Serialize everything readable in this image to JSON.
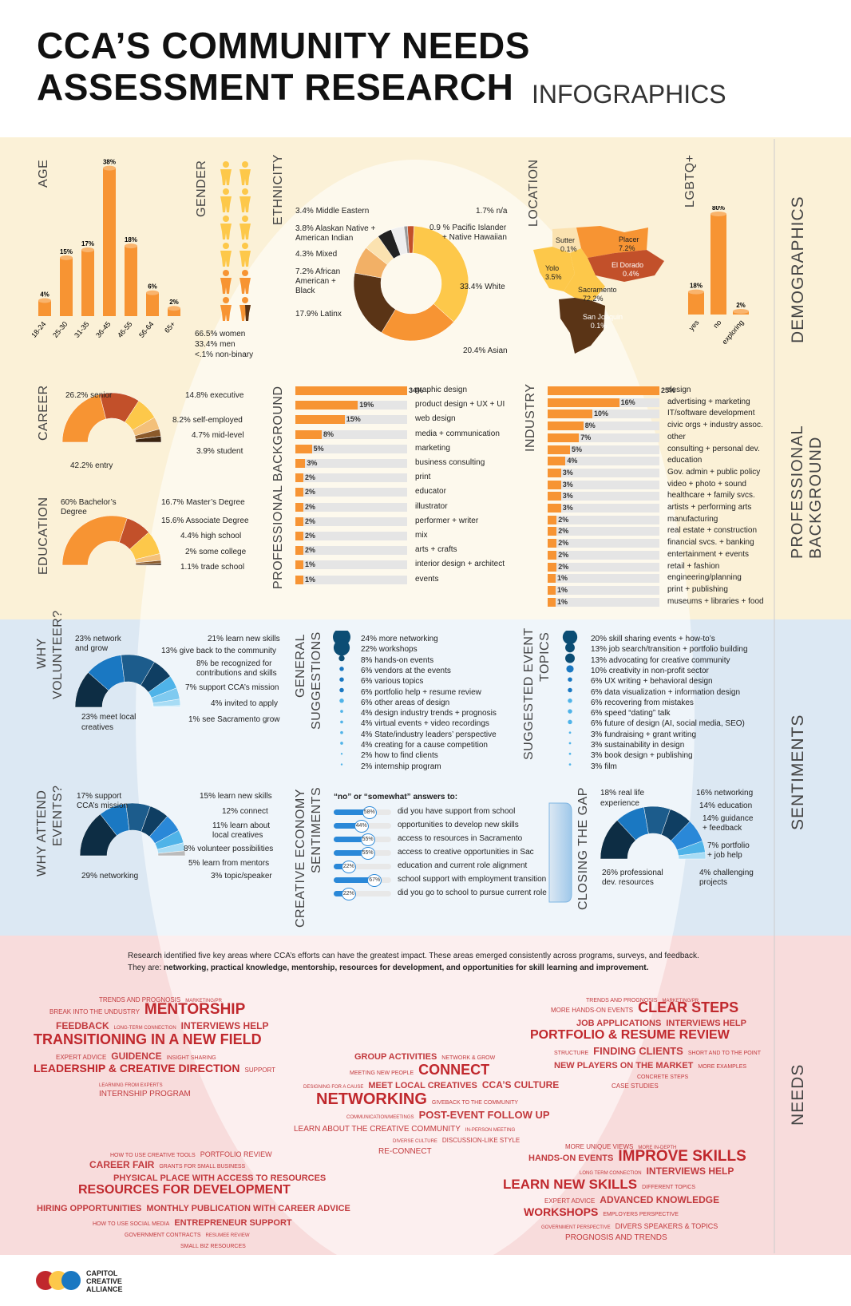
{
  "header": {
    "title_line1": "CCA’S COMMUNITY NEEDS",
    "title_line2": "ASSESSMENT RESEARCH",
    "subtitle": "INFOGRAPHICS"
  },
  "sections": {
    "demographics": "DEMOGRAPHICS",
    "professional_background": "PROFESSIONAL BACKGROUND",
    "sentiments": "SENTIMENTS",
    "needs": "NEEDS"
  },
  "colors": {
    "orange": "#f79433",
    "rust": "#c2502a",
    "yellow": "#fdc84a",
    "brown": "#5a3416",
    "navy": "#0d2d44",
    "blue": "#1a78c2",
    "lightblue": "#4fb3e8",
    "red": "#c0282d",
    "demo_bg": "#fbf1d7",
    "sent_bg": "#dce8f3",
    "needs_bg": "#f8dcdc"
  },
  "age": {
    "label": "AGE",
    "chart_data": {
      "type": "bar",
      "categories": [
        "18-24",
        "25-30",
        "31-35",
        "36-45",
        "46-55",
        "56-64",
        "65+"
      ],
      "values": [
        4,
        15,
        17,
        38,
        18,
        6,
        2
      ],
      "value_labels": [
        "4%",
        "15%",
        "17%",
        "38%",
        "18%",
        "6%",
        "2%"
      ]
    }
  },
  "gender": {
    "label": "GENDER",
    "lines": [
      "66.5% women",
      "33.4% men",
      "<.1%   non-binary"
    ]
  },
  "ethnicity": {
    "label": "ETHNICITY",
    "chart_data": {
      "type": "pie",
      "slices": [
        {
          "label": "33.4% White",
          "value": 33.4,
          "color": "#fdc84a"
        },
        {
          "label": "20.4% Asian",
          "value": 20.4,
          "color": "#f79433"
        },
        {
          "label": "17.9% Latinx",
          "value": 17.9,
          "color": "#5a3416"
        },
        {
          "label": "7.2% African American + Black",
          "value": 7.2,
          "color": "#f2b066"
        },
        {
          "label": "4.3% Mixed",
          "value": 4.3,
          "color": "#fbe2b0"
        },
        {
          "label": "3.8% Alaskan Native + American Indian",
          "value": 3.8,
          "color": "#222222"
        },
        {
          "label": "3.4% Middle Eastern",
          "value": 3.4,
          "color": "#eeeeee"
        },
        {
          "label": "1.7% n/a",
          "value": 1.7,
          "color": "#c2502a"
        },
        {
          "label": "0.9 % Pacific Islander + Native Hawaiian",
          "value": 0.9,
          "color": "#999999"
        }
      ]
    },
    "labels": {
      "middle_eastern": "3.4% Middle Eastern",
      "alaskan_1": "3.8% Alaskan Native +",
      "alaskan_2": "American Indian",
      "mixed": "4.3% Mixed",
      "african_1": "7.2% African",
      "african_2": "American +",
      "african_3": "Black",
      "latinx": "17.9% Latinx",
      "na": "1.7% n/a",
      "pacific_1": "0.9 % Pacific Islander",
      "pacific_2": "+ Native Hawaiian",
      "white": "33.4% White",
      "asian": "20.4% Asian"
    }
  },
  "location": {
    "label": "LOCATION",
    "counties": [
      {
        "name": "Sutter",
        "pct": "0.1%"
      },
      {
        "name": "Placer",
        "pct": "7.2%"
      },
      {
        "name": "Yolo",
        "pct": "3.5%"
      },
      {
        "name": "El Dorado",
        "pct": "0.4%"
      },
      {
        "name": "Sacramento",
        "pct": "72.2%"
      },
      {
        "name": "San Joaquin",
        "pct": "0.1%"
      }
    ]
  },
  "lgbtq": {
    "label": "LGBTQ+",
    "chart_data": {
      "type": "bar",
      "categories": [
        "yes",
        "no",
        "exploring"
      ],
      "values": [
        18,
        80,
        2
      ],
      "value_labels": [
        "18%",
        "80%",
        "2%"
      ]
    }
  },
  "career": {
    "label": "CAREER",
    "chart_data": {
      "type": "pie",
      "slices": [
        {
          "label": "42.2% entry",
          "value": 42.2
        },
        {
          "label": "26.2% senior",
          "value": 26.2
        },
        {
          "label": "14.8% executive",
          "value": 14.8
        },
        {
          "label": "8.2% self-employed",
          "value": 8.2
        },
        {
          "label": "4.7% mid-level",
          "value": 4.7
        },
        {
          "label": "3.9% student",
          "value": 3.9
        }
      ]
    },
    "labels": [
      "26.2% senior",
      "42.2% entry",
      "14.8% executive",
      "8.2% self-employed",
      "4.7% mid-level",
      "3.9% student"
    ]
  },
  "education": {
    "label": "EDUCATION",
    "chart_data": {
      "type": "pie",
      "slices": [
        {
          "label": "60% Bachelor’s Degree",
          "value": 60
        },
        {
          "label": "16.7% Master’s Degree",
          "value": 16.7
        },
        {
          "label": "15.6% Associate Degree",
          "value": 15.6
        },
        {
          "label": "4.4% high school",
          "value": 4.4
        },
        {
          "label": "2% some college",
          "value": 2
        },
        {
          "label": "1.1% trade school",
          "value": 1.1
        }
      ]
    },
    "labels": [
      "60% Bachelor’s",
      "Degree",
      "16.7% Master’s Degree",
      "15.6% Associate Degree",
      "4.4% high school",
      "2% some college",
      "1.1% trade school"
    ]
  },
  "professional": {
    "label": "PROFESSIONAL BACKGROUND",
    "chart_data": {
      "type": "bar",
      "orientation": "horizontal",
      "categories": [
        "graphic design",
        "product design + UX + UI",
        "web design",
        "media + communication",
        "marketing",
        "business consulting",
        "print",
        "educator",
        "illustrator",
        "performer + writer",
        "mix",
        "arts + crafts",
        "interior design + architect",
        "events"
      ],
      "values": [
        34,
        19,
        15,
        8,
        5,
        3,
        2,
        2,
        2,
        2,
        2,
        2,
        1,
        1
      ],
      "value_labels": [
        "34%",
        "19%",
        "15%",
        "8%",
        "5%",
        "3%",
        "2%",
        "2%",
        "2%",
        "2%",
        "2%",
        "2%",
        "1%",
        "1%"
      ]
    }
  },
  "industry": {
    "label": "INDUSTRY",
    "chart_data": {
      "type": "bar",
      "orientation": "horizontal",
      "categories": [
        "design",
        "advertising + marketing",
        "IT/software development",
        "civic orgs + industry assoc.",
        "other",
        "consulting + personal dev.",
        "education",
        "Gov. admin + public policy",
        "video + photo + sound",
        "healthcare + family svcs.",
        "artists + performing arts",
        "manufacturing",
        "real estate + construction",
        "financial svcs. + banking",
        "entertainment + events",
        "retail + fashion",
        "engineering/planning",
        "print + publishing",
        "museums + libraries + food"
      ],
      "values": [
        25,
        16,
        10,
        8,
        7,
        5,
        4,
        3,
        3,
        3,
        3,
        2,
        2,
        2,
        2,
        2,
        1,
        1,
        1
      ],
      "value_labels": [
        "25%",
        "16%",
        "10%",
        "8%",
        "7%",
        "5%",
        "4%",
        "3%",
        "3%",
        "3%",
        "3%",
        "2%",
        "2%",
        "2%",
        "2%",
        "2%",
        "1%",
        "1%",
        "1%"
      ]
    }
  },
  "why_volunteer": {
    "label_1": "WHY",
    "label_2": "VOLUNTEER?",
    "chart_data": {
      "type": "pie",
      "slices": [
        {
          "label": "23% meet local creatives",
          "value": 23
        },
        {
          "label": "23% network and grow",
          "value": 23
        },
        {
          "label": "21% learn new skills",
          "value": 21
        },
        {
          "label": "13% give back to the community",
          "value": 13
        },
        {
          "label": "8% be recognized for contributions and skills",
          "value": 8
        },
        {
          "label": "7% support CCA’s mission",
          "value": 7
        },
        {
          "label": "4% invited to apply",
          "value": 4
        },
        {
          "label": "1% see Sacramento grow",
          "value": 1
        }
      ]
    },
    "labels": [
      "23% network",
      "and grow",
      "23% meet local",
      "creatives",
      "21% learn new skills",
      "13% give back to the community",
      "8% be recognized for",
      "contributions and skills",
      "7% support CCA’s mission",
      "4% invited to apply",
      "1% see Sacramento grow"
    ]
  },
  "why_attend": {
    "label_1": "WHY ATTEND",
    "label_2": "EVENTS?",
    "chart_data": {
      "type": "pie",
      "slices": [
        {
          "label": "29% networking",
          "value": 29
        },
        {
          "label": "17% support CCA’s mission",
          "value": 17
        },
        {
          "label": "15% learn new skills",
          "value": 15
        },
        {
          "label": "12% connect",
          "value": 12
        },
        {
          "label": "11% learn about local creatives",
          "value": 11
        },
        {
          "label": "8% volunteer possibilities",
          "value": 8
        },
        {
          "label": "5% learn from mentors",
          "value": 5
        },
        {
          "label": "3% topic/speaker",
          "value": 3
        }
      ]
    },
    "labels": [
      "17% support",
      "CCA’s mission",
      "29% networking",
      "15% learn new skills",
      "12% connect",
      "11% learn about",
      "local creatives",
      "8% volunteer possibilities",
      "5% learn from mentors",
      "3% topic/speaker"
    ]
  },
  "general_suggestions": {
    "label_1": "GENERAL",
    "label_2": "SUGGESTIONS",
    "items": [
      "24% more networking",
      "22% workshops",
      "8% hands-on events",
      "6% vendors at the events",
      "6% various topics",
      "6% portfolio help + resume review",
      "6% other areas of design",
      "4% design industry trends + prognosis",
      "4% virtual events + video recordings",
      "4% State/industry leaders’ perspective",
      "4% creating for a cause competition",
      "2% how to find clients",
      "2% internship program"
    ]
  },
  "suggested_topics": {
    "label_1": "SUGGESTED EVENT",
    "label_2": "TOPICS",
    "items": [
      "20% skill sharing events + how-to’s",
      "13% job search/transition + portfolio building",
      "13% advocating for creative community",
      "10% creativity in non-profit sector",
      "6% UX writing + behavioral design",
      "6% data visualization + information design",
      "6% recovering from mistakes",
      "6% speed “dating” talk",
      "6% future of design (AI, social media, SEO)",
      "3% fundraising + grant writing",
      "3% sustainability in design",
      "3% book design + publishing",
      "3% film"
    ]
  },
  "creative_economy": {
    "label_1": "CREATIVE ECONOMY",
    "label_2": "SENTIMENTS",
    "heading": "“no” or “somewhat” answers to:",
    "chart_data": {
      "type": "bar",
      "orientation": "horizontal",
      "categories": [
        "did you have support from school",
        "opportunities to develop new skills",
        "access to resources in Sacramento",
        "access to creative opportunities in Sac",
        "education and current role alignment",
        "school support with employment transition",
        "did you go to school to pursue current role"
      ],
      "values": [
        58,
        44,
        55,
        55,
        22,
        67,
        22
      ],
      "value_labels": [
        "58%",
        "44%",
        "55%",
        "55%",
        "22%",
        "67%",
        "22%"
      ]
    }
  },
  "closing_gap": {
    "label": "CLOSING THE GAP",
    "chart_data": {
      "type": "pie",
      "slices": [
        {
          "label": "26% professional dev. resources",
          "value": 26
        },
        {
          "label": "18% real life experience",
          "value": 18
        },
        {
          "label": "16% networking",
          "value": 16
        },
        {
          "label": "14% education",
          "value": 14
        },
        {
          "label": "14% guidance + feedback",
          "value": 14
        },
        {
          "label": "7% portfolio + job help",
          "value": 7
        },
        {
          "label": "4% challenging projects",
          "value": 4
        }
      ]
    },
    "labels": [
      "18% real life",
      "experience",
      "26% professional",
      "dev. resources",
      "16% networking",
      "14% education",
      "14% guidance",
      "+ feedback",
      "7% portfolio",
      "+ job help",
      "4% challenging",
      "projects"
    ]
  },
  "needs": {
    "intro_1": "Research identified five key areas where CCA’s efforts can have the greatest impact. These areas emerged consistently across programs, surveys, and feedback.",
    "intro_2_prefix": "They are: ",
    "intro_2_bold": "networking, practical knowledge, mentorship, resources for development, and opportunities for skill learning and improvement.",
    "cloud_mentorship": [
      {
        "t": "TRENDS AND PROGNOSIS",
        "s": 8
      },
      {
        "t": "MARKETING/PR",
        "s": 6
      },
      {
        "t": "BREAK INTO THE UNDUSTRY",
        "s": 8
      },
      {
        "t": "MENTORSHIP",
        "s": 19
      },
      {
        "t": "FEEDBACK",
        "s": 12
      },
      {
        "t": "LONG-TERM CONNECTION",
        "s": 6
      },
      {
        "t": "INTERVIEWS HELP",
        "s": 12
      },
      {
        "t": "TRANSITIONING IN A NEW FIELD",
        "s": 18
      },
      {
        "t": "EXPERT ADVICE",
        "s": 8
      },
      {
        "t": "GUIDENCE",
        "s": 12
      },
      {
        "t": "INSIGHT SHARING",
        "s": 7
      },
      {
        "t": "LEADERSHIP & CREATIVE DIRECTION",
        "s": 14
      },
      {
        "t": "SUPPORT",
        "s": 8
      },
      {
        "t": "LEARNING FROM EXPERTS",
        "s": 6
      },
      {
        "t": "INTERNSHIP PROGRAM",
        "s": 10
      }
    ],
    "cloud_knowledge": [
      {
        "t": "TRENDS AND PROGNOSIS",
        "s": 7
      },
      {
        "t": "MARKETING/PR",
        "s": 6
      },
      {
        "t": "MORE HANDS-ON EVENTS",
        "s": 8
      },
      {
        "t": "CLEAR STEPS",
        "s": 18
      },
      {
        "t": "JOB APPLICATIONS",
        "s": 11
      },
      {
        "t": "INTERVIEWS HELP",
        "s": 11
      },
      {
        "t": "PORTFOLIO & RESUME REVIEW",
        "s": 16
      },
      {
        "t": "STRUCTURE",
        "s": 7
      },
      {
        "t": "FINDING CLIENTS",
        "s": 13
      },
      {
        "t": "SHORT AND TO THE POINT",
        "s": 7
      },
      {
        "t": "NEW PLAYERS ON THE MARKET",
        "s": 11
      },
      {
        "t": "MORE EXAMPLES",
        "s": 7
      },
      {
        "t": "CONCRETE STEPS",
        "s": 7
      },
      {
        "t": "CASE STUDIES",
        "s": 8
      }
    ],
    "cloud_networking": [
      {
        "t": "GROUP ACTIVITIES",
        "s": 11
      },
      {
        "t": "NETWORK & GROW",
        "s": 7
      },
      {
        "t": "MEETING NEW PEOPLE",
        "s": 7
      },
      {
        "t": "CONNECT",
        "s": 18
      },
      {
        "t": "DESIGNING FOR A CAUSE",
        "s": 6
      },
      {
        "t": "MEET LOCAL CREATIVES",
        "s": 11
      },
      {
        "t": "CCA’S CULTURE",
        "s": 12
      },
      {
        "t": "NETWORKING",
        "s": 20
      },
      {
        "t": "GIVEBACK TO THE COMMUNITY",
        "s": 7
      },
      {
        "t": "COMMUNICATION/MEETINGS",
        "s": 6
      },
      {
        "t": "POST-EVENT FOLLOW UP",
        "s": 13
      },
      {
        "t": "LEARN ABOUT THE CREATIVE COMMUNITY",
        "s": 10
      },
      {
        "t": "IN-PERSON MEETING",
        "s": 6
      },
      {
        "t": "DIVERSE CULTURE",
        "s": 6
      },
      {
        "t": "DISCUSSION-LIKE STYLE",
        "s": 8
      },
      {
        "t": "RE-CONNECT",
        "s": 10
      }
    ],
    "cloud_resources": [
      {
        "t": "HOW TO USE CREATIVE TOOLS",
        "s": 7
      },
      {
        "t": "PORTFOLIO REVIEW",
        "s": 9
      },
      {
        "t": "CAREER FAIR",
        "s": 12
      },
      {
        "t": "GRANTS FOR SMALL BUSINESS",
        "s": 7
      },
      {
        "t": "PHYSICAL PLACE WITH ACCESS TO RESOURCES",
        "s": 11
      },
      {
        "t": "RESOURCES FOR DEVELOPMENT",
        "s": 16
      },
      {
        "t": "HIRING OPPORTUNITIES",
        "s": 11
      },
      {
        "t": "MONTHLY PUBLICATION WITH CAREER ADVICE",
        "s": 11
      },
      {
        "t": "HOW TO USE SOCIAL MEDIA",
        "s": 7
      },
      {
        "t": "ENTREPRENEUR SUPPORT",
        "s": 11
      },
      {
        "t": "GOVERNMENT CONTRACTS",
        "s": 7
      },
      {
        "t": "RESUMEE REVIEW",
        "s": 6
      },
      {
        "t": "SMALL BIZ RESOURCES",
        "s": 7
      }
    ],
    "cloud_skills": [
      {
        "t": "MORE UNIQUE VIEWS",
        "s": 8
      },
      {
        "t": "MORE IN-DEPTH",
        "s": 6
      },
      {
        "t": "HANDS-ON EVENTS",
        "s": 11
      },
      {
        "t": "IMPROVE SKILLS",
        "s": 19
      },
      {
        "t": "LONG TERM CONNECTION",
        "s": 6
      },
      {
        "t": "INTERVIEWS HELP",
        "s": 12
      },
      {
        "t": "LEARN NEW SKILLS",
        "s": 17
      },
      {
        "t": "DIFFERENT TOPICS",
        "s": 7
      },
      {
        "t": "EXPERT ADVICE",
        "s": 8
      },
      {
        "t": "ADVANCED KNOWLEDGE",
        "s": 12
      },
      {
        "t": "WORKSHOPS",
        "s": 14
      },
      {
        "t": "EMPLOYERS PERSPECTIVE",
        "s": 7
      },
      {
        "t": "GOVERNMENT PERSPECTIVE",
        "s": 6
      },
      {
        "t": "DIVERS SPEAKERS & TOPICS",
        "s": 9
      },
      {
        "t": "PROGNOSIS AND TRENDS",
        "s": 10
      }
    ]
  },
  "footer": {
    "logo_line1": "CAPITOL",
    "logo_line2": "CREATIVE",
    "logo_line3": "ALLIANCE"
  }
}
